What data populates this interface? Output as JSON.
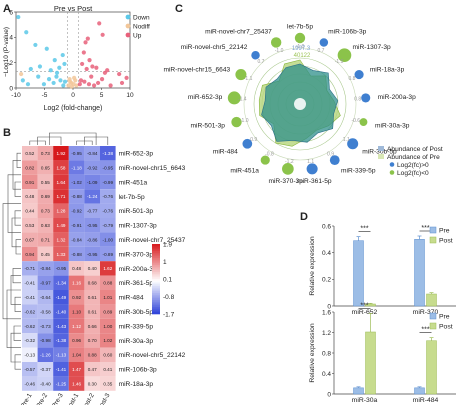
{
  "panel_letters": [
    "A",
    "B",
    "C",
    "D"
  ],
  "colors": {
    "down": "#5bc8e8",
    "nodiff": "#f2c79a",
    "up": "#e8607a",
    "heat_high": "#d7191c",
    "heat_mid": "#ffffff",
    "heat_low": "#2c40d8",
    "post_blue": "#3f7fd0",
    "pre_green": "#8bc34a",
    "bar_pre": "#9cbde6",
    "bar_post": "#c7dc8e"
  },
  "chart_data": [
    {
      "panel": "A",
      "type": "scatter",
      "title": "Pre vs Post",
      "xlabel": "Log2 (fold-change)",
      "ylabel": "−Log10 (P-value)",
      "xlim": [
        -10,
        10
      ],
      "ylim": [
        0,
        6
      ],
      "xticks": [
        "-10",
        "-5",
        "0",
        "5",
        "10"
      ],
      "yticks": [
        "0",
        "2",
        "4",
        "6"
      ],
      "legend": [
        "Down",
        "Nodiff",
        "Up"
      ],
      "legend_position": "top-right",
      "thresholds": {
        "x": [
          -1,
          1
        ],
        "y": 1.3
      },
      "series": [
        {
          "name": "Down",
          "points": [
            [
              -9.6,
              5.6
            ],
            [
              -8.2,
              4.4
            ],
            [
              -6.6,
              3.4
            ],
            [
              -4.6,
              3.1
            ],
            [
              -3.2,
              2.2
            ],
            [
              -5.8,
              1.7
            ],
            [
              -7.4,
              1.5
            ],
            [
              -2.4,
              1.6
            ],
            [
              -1.8,
              2.6
            ],
            [
              -3.9,
              1.4
            ],
            [
              -1.5,
              1.9
            ],
            [
              -2.8,
              1.2
            ],
            [
              -6.1,
              0.9
            ],
            [
              -4.2,
              0.7
            ],
            [
              -8.8,
              0.6
            ],
            [
              -2.2,
              0.6
            ],
            [
              -1.4,
              0.5
            ],
            [
              -3.4,
              0.4
            ],
            [
              -5.1,
              0.3
            ],
            [
              -1.7,
              0.2
            ],
            [
              -7.9,
              0.3
            ],
            [
              -2.9,
              0.9
            ]
          ]
        },
        {
          "name": "Nodiff",
          "points": [
            [
              -9.1,
              1.1
            ],
            [
              -0.8,
              0.2
            ],
            [
              -0.5,
              0.5
            ],
            [
              -0.3,
              0.4
            ],
            [
              0.1,
              0.3
            ],
            [
              0.4,
              0.6
            ],
            [
              0.6,
              0.2
            ],
            [
              -0.2,
              0.1
            ],
            [
              0.2,
              0.8
            ],
            [
              -0.6,
              0.7
            ]
          ]
        },
        {
          "name": "Up",
          "points": [
            [
              4.6,
              5.1
            ],
            [
              5.2,
              4.2
            ],
            [
              2.6,
              3.9
            ],
            [
              2.2,
              3.6
            ],
            [
              1.9,
              2.8
            ],
            [
              2.9,
              2.2
            ],
            [
              1.6,
              1.9
            ],
            [
              3.4,
              1.7
            ],
            [
              4.1,
              1.6
            ],
            [
              2.4,
              1.5
            ],
            [
              6.0,
              1.4
            ],
            [
              5.6,
              1.2
            ],
            [
              8.1,
              1.1
            ],
            [
              9.4,
              0.8
            ],
            [
              3.2,
              0.9
            ],
            [
              1.4,
              0.6
            ],
            [
              2.0,
              0.5
            ],
            [
              4.4,
              0.4
            ],
            [
              1.2,
              0.3
            ],
            [
              6.6,
              0.2
            ],
            [
              3.7,
              0.2
            ],
            [
              8.6,
              0.4
            ],
            [
              5.1,
              0.7
            ],
            [
              2.8,
              0.3
            ]
          ]
        }
      ]
    },
    {
      "panel": "B",
      "type": "heatmap",
      "columns": [
        "Pre-1",
        "Pre-2",
        "Pre-3",
        "Post-1",
        "Post-2",
        "Post-3"
      ],
      "rows": [
        "miR-652-3p",
        "miR-novel-chr15_6643",
        "miR-451a",
        "let-7b-5p",
        "miR-501-3p",
        "miR-1307-3p",
        "miR-novel-chr7_25437",
        "miR-370-3p",
        "miR-200a-3p",
        "miR-361-5p",
        "miR-484",
        "miR-30b-5p",
        "miR-339-5p",
        "miR-30a-3p",
        "miR-novel-chr5_22142",
        "miR-106b-3p",
        "miR-18a-3p"
      ],
      "values": [
        [
          0.52,
          0.73,
          1.92,
          -0.95,
          -0.84,
          -1.38
        ],
        [
          0.82,
          0.65,
          1.58,
          -1.18,
          -0.92,
          -0.95
        ],
        [
          0.91,
          0.55,
          1.64,
          -1.02,
          -1.09,
          -0.99
        ],
        [
          0.48,
          0.69,
          1.71,
          -0.88,
          -1.24,
          -0.76
        ],
        [
          0.44,
          0.73,
          1.28,
          -0.92,
          -0.77,
          -0.76
        ],
        [
          0.53,
          0.63,
          1.49,
          -0.91,
          -0.95,
          -0.79
        ],
        [
          0.67,
          0.71,
          1.32,
          -0.84,
          -0.86,
          -1.0
        ],
        [
          0.94,
          0.45,
          1.33,
          -0.88,
          -0.95,
          -0.89
        ],
        [
          -0.71,
          -0.84,
          -0.95,
          0.48,
          0.4,
          1.62
        ],
        [
          -0.41,
          -0.97,
          -1.34,
          1.16,
          0.68,
          0.88
        ],
        [
          -0.41,
          -0.64,
          -1.49,
          0.92,
          0.61,
          1.01
        ],
        [
          -0.62,
          -0.58,
          -1.4,
          1.1,
          0.61,
          0.89
        ],
        [
          -0.62,
          -0.73,
          -1.43,
          1.12,
          0.66,
          1.0
        ],
        [
          -0.32,
          -0.98,
          -1.38,
          0.96,
          0.7,
          1.02
        ],
        [
          -0.13,
          -1.26,
          -1.13,
          1.04,
          0.88,
          0.6
        ],
        [
          -0.57,
          -0.37,
          -1.41,
          1.47,
          0.47,
          0.41
        ],
        [
          -0.46,
          -0.4,
          -1.25,
          1.46,
          0.3,
          0.35
        ]
      ],
      "colorbar": {
        "ticks": [
          "1.9",
          "1",
          "0.1",
          "-0.8",
          "-1.7"
        ],
        "range": [
          -1.7,
          1.9
        ]
      }
    },
    {
      "panel": "C",
      "type": "radial",
      "labels": [
        "let-7b-5p",
        "miR-106b-3p",
        "miR-1307-3p",
        "miR-18a-3p",
        "miR-200a-3p",
        "miR-30a-3p",
        "miR-30b-5p",
        "miR-339-5p",
        "miR-361-5p",
        "miR-370-3p",
        "miR-451a",
        "miR-484",
        "miR-501-3p",
        "miR-652-3p",
        "miR-novel-chr15_6643",
        "miR-novel-chr5_22142",
        "miR-novel-chr7_25437"
      ],
      "log2fc": [
        -1.0,
        0.7,
        -1.5,
        0.8,
        0.8,
        -0.6,
        1.1,
        0.9,
        1.1,
        -1.2,
        -0.8,
        0.9,
        -1.0,
        -1.4,
        -1.1,
        0.7,
        -1.0
      ],
      "inner_values": {
        "top": "1997.3",
        "top2": "40122"
      },
      "legend": [
        "Abundance of Post",
        "Abundance of Pre",
        "Log2(fc)>0",
        "Log2(fc)<0"
      ]
    },
    {
      "panel": "D-top",
      "type": "bar",
      "categories": [
        "miR-652",
        "miR-370"
      ],
      "series": [
        {
          "name": "Pre",
          "values": [
            0.49,
            0.5
          ],
          "errors": [
            0.03,
            0.025
          ]
        },
        {
          "name": "Post",
          "values": [
            0.015,
            0.09
          ],
          "errors": [
            0.005,
            0.01
          ]
        }
      ],
      "ylabel": "Relative expression",
      "ylim": [
        0,
        0.6
      ],
      "yticks": [
        "0",
        "0.2",
        "0.4",
        "0.6"
      ],
      "significance": [
        "***",
        "***"
      ],
      "legend_position": "top-right"
    },
    {
      "panel": "D-bottom",
      "type": "bar",
      "categories": [
        "miR-30a",
        "miR-484"
      ],
      "series": [
        {
          "name": "Pre",
          "values": [
            0.12,
            0.12
          ],
          "errors": [
            0.02,
            0.02
          ]
        },
        {
          "name": "Post",
          "values": [
            1.21,
            1.04
          ],
          "errors": [
            0.36,
            0.06
          ]
        }
      ],
      "ylabel": "Relative expression",
      "ylim": [
        0,
        1.6
      ],
      "yticks": [
        "0",
        "0.4",
        "0.8",
        "1.2",
        "1.6"
      ],
      "significance": [
        "***",
        "***"
      ],
      "legend_position": "top-right"
    }
  ]
}
